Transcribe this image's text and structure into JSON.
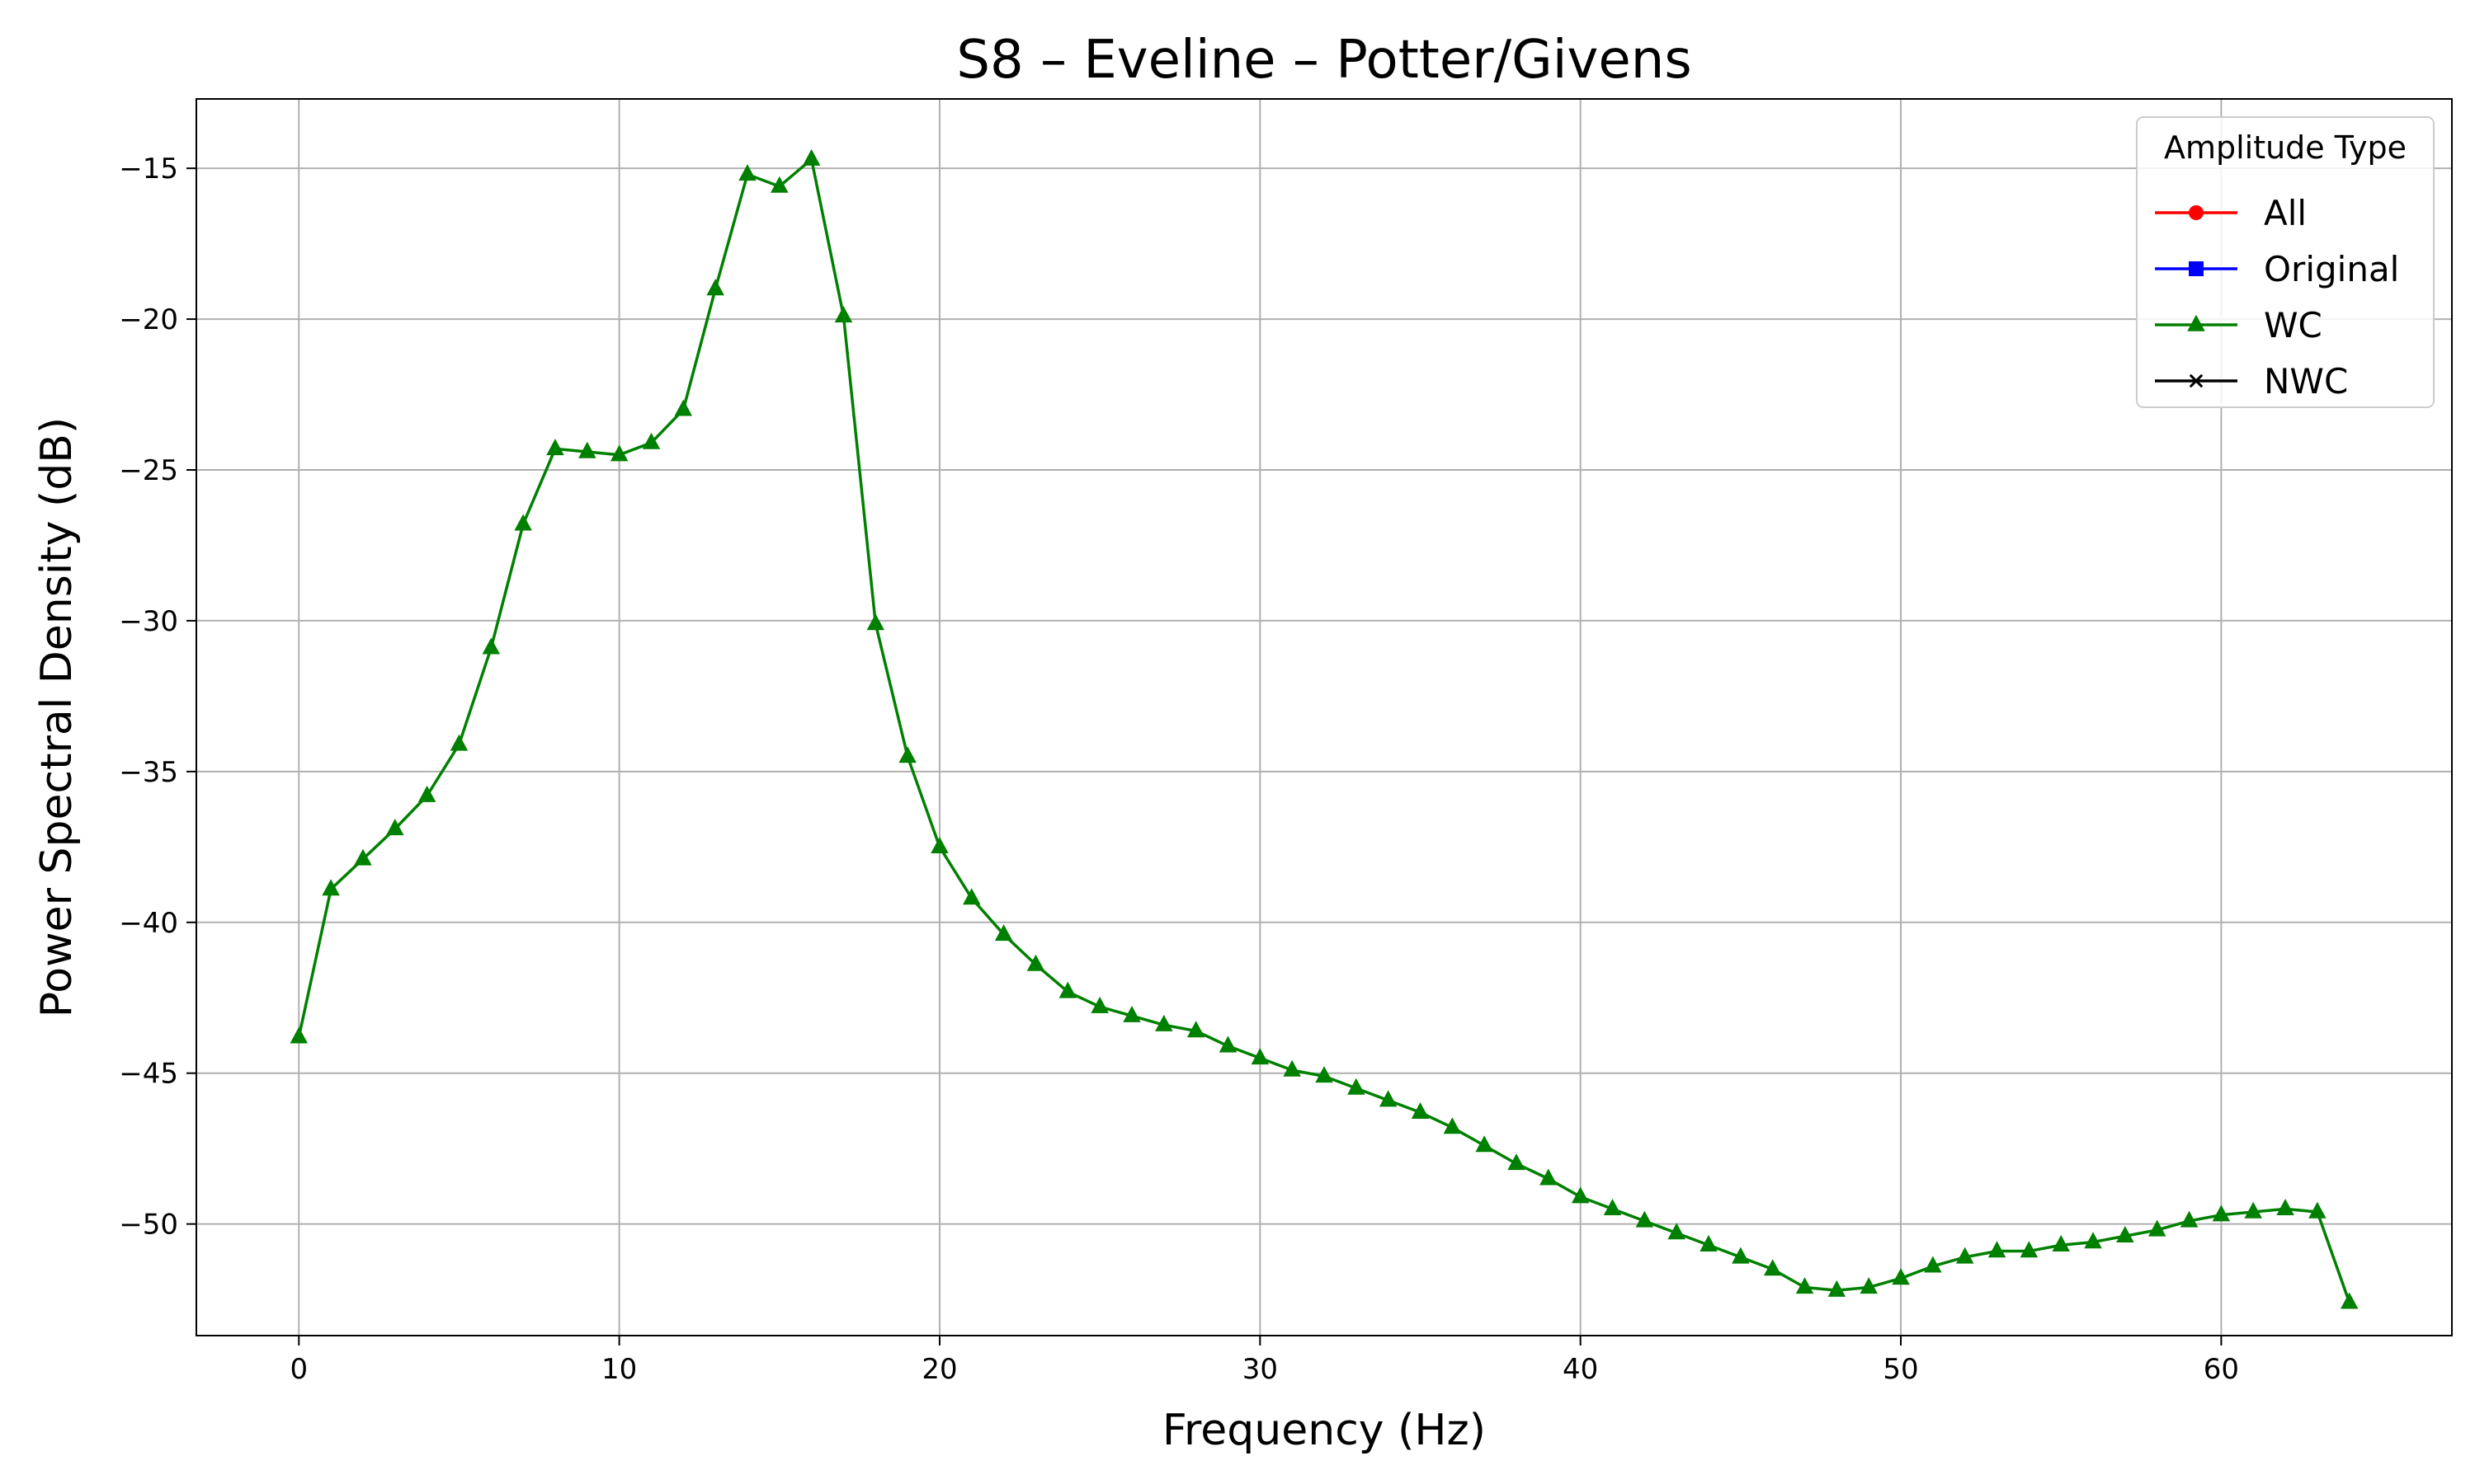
{
  "chart_data": {
    "type": "line",
    "title": "S8 – Eveline – Potter/Givens",
    "xlabel": "Frequency (Hz)",
    "ylabel": "Power Spectral Density (dB)",
    "xlim": [
      -3.2,
      67.2
    ],
    "ylim": [
      -53.7,
      -12.7
    ],
    "xticks": [
      0,
      10,
      20,
      30,
      40,
      50,
      60
    ],
    "yticks": [
      -50,
      -45,
      -40,
      -35,
      -30,
      -25,
      -20,
      -15
    ],
    "ytick_labels": [
      "−50",
      "−45",
      "−40",
      "−35",
      "−30",
      "−25",
      "−20",
      "−15"
    ],
    "grid": true,
    "legend": {
      "title": "Amplitude Type",
      "placement": "top-right",
      "entries": [
        {
          "name": "All",
          "color": "#ff0000",
          "marker": "circle"
        },
        {
          "name": "Original",
          "color": "#0000ff",
          "marker": "square"
        },
        {
          "name": "WC",
          "color": "#008000",
          "marker": "triangle"
        },
        {
          "name": "NWC",
          "color": "#000000",
          "marker": "x"
        }
      ]
    },
    "series": [
      {
        "name": "WC",
        "color": "#008000",
        "marker": "triangle",
        "x": [
          0,
          1,
          2,
          3,
          4,
          5,
          6,
          7,
          8,
          9,
          10,
          11,
          12,
          13,
          14,
          15,
          16,
          17,
          18,
          19,
          20,
          21,
          22,
          23,
          24,
          25,
          26,
          27,
          28,
          29,
          30,
          31,
          32,
          33,
          34,
          35,
          36,
          37,
          38,
          39,
          40,
          41,
          42,
          43,
          44,
          45,
          46,
          47,
          48,
          49,
          50,
          51,
          52,
          53,
          54,
          55,
          56,
          57,
          58,
          59,
          60,
          61,
          62,
          63,
          64
        ],
        "y": [
          -43.8,
          -38.9,
          -37.9,
          -36.9,
          -35.8,
          -34.1,
          -30.9,
          -26.8,
          -24.3,
          -24.4,
          -24.5,
          -24.1,
          -23.0,
          -19.0,
          -15.2,
          -15.6,
          -14.7,
          -19.9,
          -30.1,
          -34.5,
          -37.5,
          -39.2,
          -40.4,
          -41.4,
          -42.3,
          -42.8,
          -43.1,
          -43.4,
          -43.6,
          -44.1,
          -44.5,
          -44.9,
          -45.1,
          -45.5,
          -45.9,
          -46.3,
          -46.8,
          -47.4,
          -48.0,
          -48.5,
          -49.1,
          -49.5,
          -49.9,
          -50.3,
          -50.7,
          -51.1,
          -51.5,
          -52.1,
          -52.2,
          -52.1,
          -51.8,
          -51.4,
          -51.1,
          -50.9,
          -50.9,
          -50.7,
          -50.6,
          -50.4,
          -50.2,
          -49.9,
          -49.7,
          -49.6,
          -49.5,
          -49.6,
          -52.6
        ]
      }
    ]
  }
}
